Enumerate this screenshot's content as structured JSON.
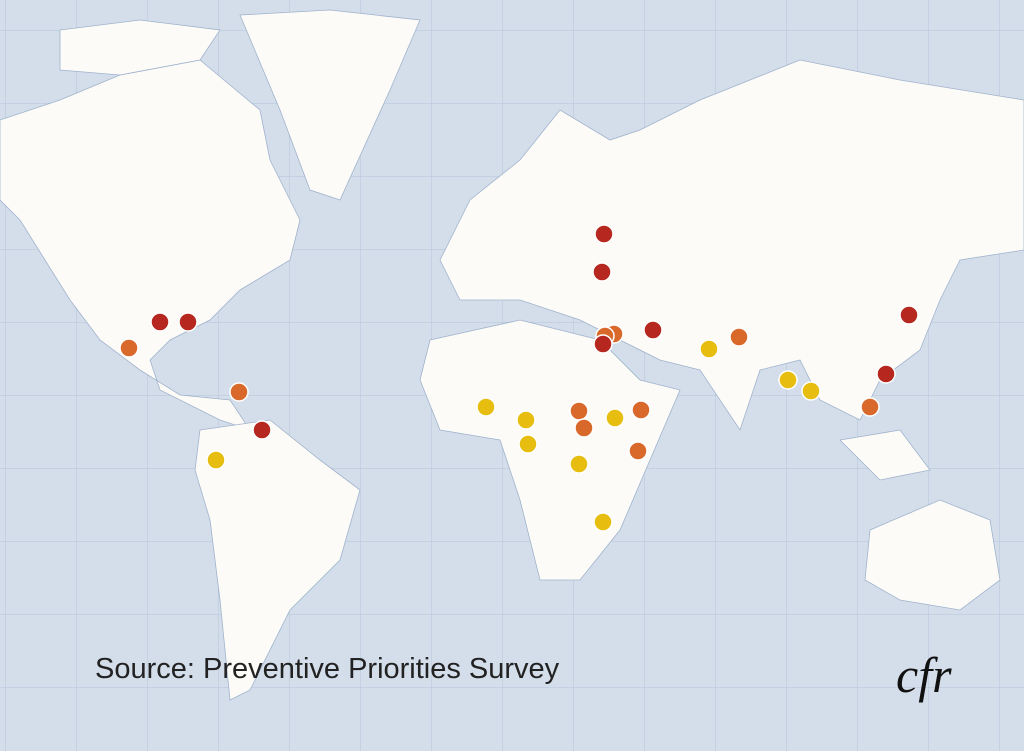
{
  "source": "Source: Preventive Priorities Survey",
  "logo": "cfr"
}
